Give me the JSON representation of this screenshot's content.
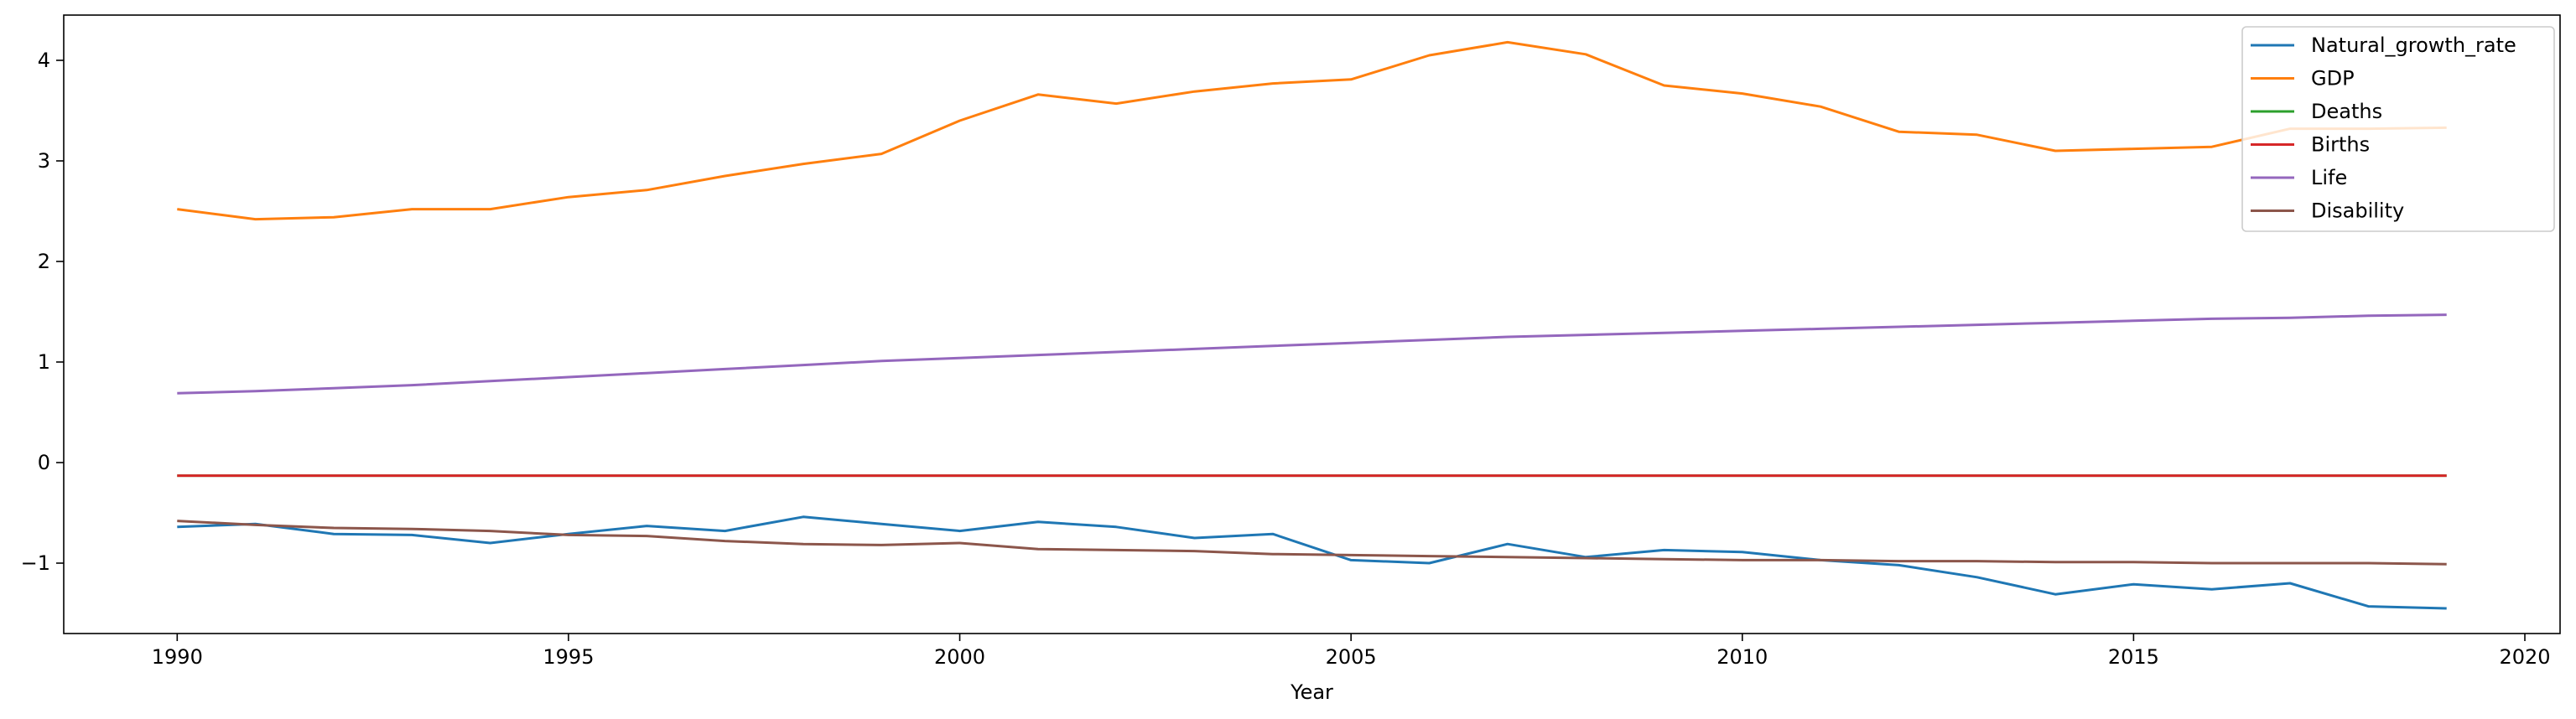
{
  "chart_data": {
    "type": "line",
    "title": "",
    "xlabel": "Year",
    "ylabel": "",
    "xlim": [
      1988.55,
      2020.45
    ],
    "ylim": [
      -1.7,
      4.45
    ],
    "xticks": [
      1990,
      1995,
      2000,
      2005,
      2010,
      2015,
      2020
    ],
    "yticks": [
      -1,
      0,
      1,
      2,
      3,
      4
    ],
    "ytick_labels": [
      "−1",
      "0",
      "1",
      "2",
      "3",
      "4"
    ],
    "grid": false,
    "legend_position": "top-right",
    "x": [
      1990,
      1991,
      1992,
      1993,
      1994,
      1995,
      1996,
      1997,
      1998,
      1999,
      2000,
      2001,
      2002,
      2003,
      2004,
      2005,
      2006,
      2007,
      2008,
      2009,
      2010,
      2011,
      2012,
      2013,
      2014,
      2015,
      2016,
      2017,
      2018,
      2019
    ],
    "series": [
      {
        "name": "Natural_growth_rate",
        "color": "#1f77b4",
        "values": [
          -0.64,
          -0.61,
          -0.71,
          -0.72,
          -0.8,
          -0.71,
          -0.63,
          -0.68,
          -0.54,
          -0.61,
          -0.68,
          -0.59,
          -0.64,
          -0.75,
          -0.71,
          -0.97,
          -1.0,
          -0.81,
          -0.94,
          -0.87,
          -0.89,
          -0.97,
          -1.02,
          -1.14,
          -1.31,
          -1.21,
          -1.26,
          -1.2,
          -1.43,
          -1.45
        ]
      },
      {
        "name": "GDP",
        "color": "#ff7f0e",
        "values": [
          2.52,
          2.42,
          2.44,
          2.52,
          2.52,
          2.64,
          2.71,
          2.85,
          2.97,
          3.07,
          3.4,
          3.66,
          3.57,
          3.69,
          3.77,
          3.81,
          4.05,
          4.18,
          4.06,
          3.75,
          3.67,
          3.54,
          3.29,
          3.26,
          3.1,
          3.12,
          3.14,
          3.32,
          3.32,
          3.33
        ]
      },
      {
        "name": "Deaths",
        "color": "#2ca02c",
        "values": [
          -0.13,
          -0.13,
          -0.13,
          -0.13,
          -0.13,
          -0.13,
          -0.13,
          -0.13,
          -0.13,
          -0.13,
          -0.13,
          -0.13,
          -0.13,
          -0.13,
          -0.13,
          -0.13,
          -0.13,
          -0.13,
          -0.13,
          -0.13,
          -0.13,
          -0.13,
          -0.13,
          -0.13,
          -0.13,
          -0.13,
          -0.13,
          -0.13,
          -0.13,
          -0.13
        ]
      },
      {
        "name": "Births",
        "color": "#d62728",
        "values": [
          -0.13,
          -0.13,
          -0.13,
          -0.13,
          -0.13,
          -0.13,
          -0.13,
          -0.13,
          -0.13,
          -0.13,
          -0.13,
          -0.13,
          -0.13,
          -0.13,
          -0.13,
          -0.13,
          -0.13,
          -0.13,
          -0.13,
          -0.13,
          -0.13,
          -0.13,
          -0.13,
          -0.13,
          -0.13,
          -0.13,
          -0.13,
          -0.13,
          -0.13,
          -0.13
        ]
      },
      {
        "name": "Life",
        "color": "#9467bd",
        "values": [
          0.69,
          0.71,
          0.74,
          0.77,
          0.81,
          0.85,
          0.89,
          0.93,
          0.97,
          1.01,
          1.04,
          1.07,
          1.1,
          1.13,
          1.16,
          1.19,
          1.22,
          1.25,
          1.27,
          1.29,
          1.31,
          1.33,
          1.35,
          1.37,
          1.39,
          1.41,
          1.43,
          1.44,
          1.46,
          1.47
        ]
      },
      {
        "name": "Disability",
        "color": "#8c564b",
        "values": [
          -0.58,
          -0.62,
          -0.65,
          -0.66,
          -0.68,
          -0.72,
          -0.73,
          -0.78,
          -0.81,
          -0.82,
          -0.8,
          -0.86,
          -0.87,
          -0.88,
          -0.91,
          -0.92,
          -0.93,
          -0.94,
          -0.95,
          -0.96,
          -0.97,
          -0.97,
          -0.98,
          -0.98,
          -0.99,
          -0.99,
          -1.0,
          -1.0,
          -1.0,
          -1.01
        ]
      }
    ]
  }
}
